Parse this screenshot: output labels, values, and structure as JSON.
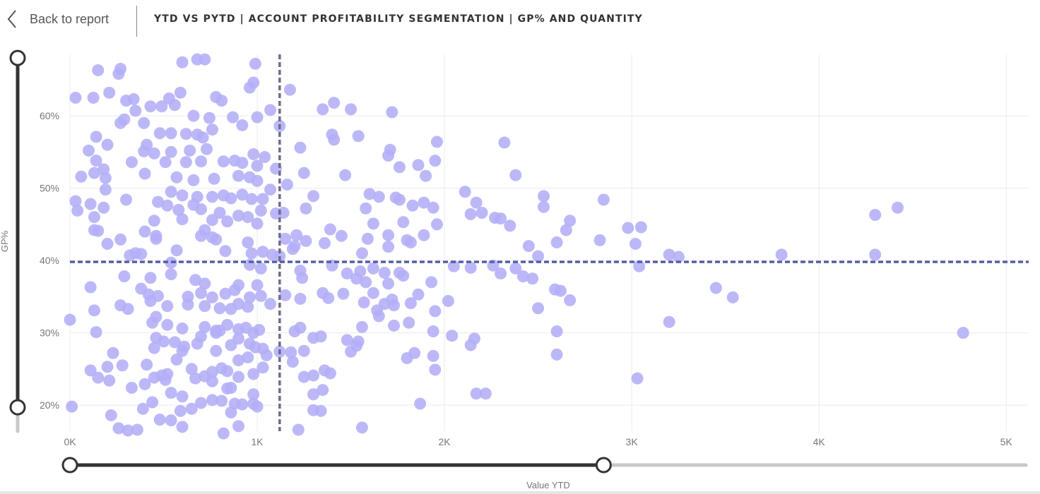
{
  "header": {
    "back_label": "Back to report",
    "title": "YTD VS PYTD | ACCOUNT PROFITABILITY SEGMENTATION | GP% AND QUANTITY"
  },
  "colors": {
    "point": "#b3aef7",
    "reference_line": "#5560a8",
    "vertical_reference": "#6f6b8a",
    "slider_active": "#333333",
    "slider_inactive": "#c8c8c8",
    "gridline": "#ebebeb"
  },
  "sliders": {
    "y_handle_top_value": 68,
    "y_handle_bottom_value": 19.7,
    "x_handle_left_value": 0,
    "x_handle_right_value": 2850
  },
  "chart_data": {
    "type": "scatter",
    "xlabel": "Value YTD",
    "ylabel": "GP%",
    "xlim": [
      0,
      5120
    ],
    "ylim": [
      16.4,
      68.5
    ],
    "x_ticks": [
      0,
      1000,
      2000,
      3000,
      4000,
      5000
    ],
    "x_tick_labels": [
      "0K",
      "1K",
      "2K",
      "3K",
      "4K",
      "5K"
    ],
    "y_ticks": [
      20,
      30,
      40,
      50,
      60
    ],
    "y_tick_labels": [
      "20%",
      "30%",
      "40%",
      "50%",
      "60%"
    ],
    "reference_lines": {
      "y": 39.8,
      "x": 1120
    },
    "points": [
      [
        30,
        62.5
      ],
      [
        150,
        66.3
      ],
      [
        270,
        66.5
      ],
      [
        260,
        65.8
      ],
      [
        600,
        67.4
      ],
      [
        680,
        67.8
      ],
      [
        720,
        67.8
      ],
      [
        990,
        67.2
      ],
      [
        125,
        62.5
      ],
      [
        210,
        63.2
      ],
      [
        300,
        62.1
      ],
      [
        340,
        62.3
      ],
      [
        430,
        61.3
      ],
      [
        490,
        61.3
      ],
      [
        530,
        62.4
      ],
      [
        590,
        63.2
      ],
      [
        780,
        62.6
      ],
      [
        810,
        62.1
      ],
      [
        960,
        63.9
      ],
      [
        980,
        64.6
      ],
      [
        1175,
        63.6
      ],
      [
        1410,
        61.8
      ],
      [
        560,
        61.5
      ],
      [
        660,
        60.0
      ],
      [
        1070,
        60.8
      ],
      [
        1000,
        59.8
      ],
      [
        270,
        59.0
      ],
      [
        290,
        59.5
      ],
      [
        395,
        59.0
      ],
      [
        745,
        59.7
      ],
      [
        870,
        59.8
      ],
      [
        920,
        58.7
      ],
      [
        1120,
        58.6
      ],
      [
        1350,
        60.9
      ],
      [
        1500,
        60.9
      ],
      [
        1720,
        60.5
      ],
      [
        350,
        60.7
      ],
      [
        140,
        57.1
      ],
      [
        480,
        57.6
      ],
      [
        540,
        57.6
      ],
      [
        620,
        57.5
      ],
      [
        680,
        57.4
      ],
      [
        710,
        57.0
      ],
      [
        760,
        58.1
      ],
      [
        1400,
        57.4
      ],
      [
        1410,
        56.7
      ],
      [
        1540,
        57.2
      ],
      [
        1710,
        55.3
      ],
      [
        1960,
        56.4
      ],
      [
        2320,
        56.3
      ],
      [
        200,
        56.0
      ],
      [
        410,
        56.0
      ],
      [
        100,
        55.2
      ],
      [
        395,
        55.1
      ],
      [
        450,
        54.8
      ],
      [
        540,
        55.0
      ],
      [
        640,
        55.2
      ],
      [
        730,
        55.4
      ],
      [
        980,
        54.7
      ],
      [
        1040,
        54.3
      ],
      [
        1230,
        55.6
      ],
      [
        1700,
        54.5
      ],
      [
        1860,
        53.2
      ],
      [
        1950,
        53.8
      ],
      [
        140,
        53.8
      ],
      [
        330,
        53.6
      ],
      [
        510,
        53.6
      ],
      [
        620,
        53.6
      ],
      [
        700,
        53.7
      ],
      [
        820,
        53.7
      ],
      [
        880,
        53.8
      ],
      [
        920,
        53.5
      ],
      [
        1000,
        53.1
      ],
      [
        1100,
        52.7
      ],
      [
        1760,
        52.9
      ],
      [
        2380,
        51.8
      ],
      [
        180,
        52.6
      ],
      [
        60,
        51.6
      ],
      [
        130,
        52.1
      ],
      [
        190,
        51.4
      ],
      [
        400,
        52.0
      ],
      [
        570,
        51.5
      ],
      [
        660,
        51.1
      ],
      [
        770,
        51.3
      ],
      [
        900,
        51.7
      ],
      [
        960,
        51.5
      ],
      [
        1000,
        51.0
      ],
      [
        1250,
        52.1
      ],
      [
        1470,
        51.8
      ],
      [
        1900,
        51.7
      ],
      [
        2110,
        49.5
      ],
      [
        2530,
        48.9
      ],
      [
        190,
        49.8
      ],
      [
        300,
        48.4
      ],
      [
        540,
        49.5
      ],
      [
        600,
        49.0
      ],
      [
        680,
        48.8
      ],
      [
        760,
        48.8
      ],
      [
        820,
        49.0
      ],
      [
        860,
        48.6
      ],
      [
        920,
        49.1
      ],
      [
        970,
        48.5
      ],
      [
        1030,
        48.5
      ],
      [
        1070,
        49.8
      ],
      [
        1160,
        50.5
      ],
      [
        1300,
        48.9
      ],
      [
        1600,
        49.2
      ],
      [
        1650,
        48.8
      ],
      [
        1740,
        48.7
      ],
      [
        1890,
        48.0
      ],
      [
        2170,
        48.0
      ],
      [
        2850,
        48.4
      ],
      [
        30,
        48.2
      ],
      [
        110,
        47.8
      ],
      [
        180,
        47.3
      ],
      [
        470,
        48.1
      ],
      [
        520,
        47.6
      ],
      [
        580,
        47.0
      ],
      [
        660,
        47.7
      ],
      [
        700,
        47.1
      ],
      [
        800,
        46.6
      ],
      [
        900,
        46.2
      ],
      [
        950,
        46.0
      ],
      [
        1020,
        46.9
      ],
      [
        1100,
        46.5
      ],
      [
        1260,
        47.2
      ],
      [
        1580,
        47.2
      ],
      [
        1760,
        48.4
      ],
      [
        1830,
        47.6
      ],
      [
        1940,
        47.3
      ],
      [
        2140,
        46.4
      ],
      [
        2200,
        46.6
      ],
      [
        2270,
        45.9
      ],
      [
        2300,
        45.8
      ],
      [
        2530,
        47.4
      ],
      [
        4300,
        46.3
      ],
      [
        4420,
        47.3
      ],
      [
        40,
        46.9
      ],
      [
        130,
        46.0
      ],
      [
        450,
        45.5
      ],
      [
        600,
        45.7
      ],
      [
        760,
        45.6
      ],
      [
        840,
        45.4
      ],
      [
        1000,
        45.1
      ],
      [
        1140,
        46.6
      ],
      [
        1620,
        45.1
      ],
      [
        1780,
        45.3
      ],
      [
        1960,
        45.0
      ],
      [
        2350,
        44.8
      ],
      [
        2670,
        45.5
      ],
      [
        3050,
        44.6
      ],
      [
        2980,
        44.5
      ],
      [
        130,
        44.2
      ],
      [
        150,
        44.1
      ],
      [
        400,
        44.0
      ],
      [
        460,
        43.4
      ],
      [
        720,
        44.2
      ],
      [
        760,
        43.2
      ],
      [
        1150,
        43.0
      ],
      [
        1210,
        43.5
      ],
      [
        1390,
        44.3
      ],
      [
        1700,
        43.5
      ],
      [
        1890,
        43.5
      ],
      [
        2650,
        44.2
      ],
      [
        2450,
        42.0
      ],
      [
        200,
        42.3
      ],
      [
        270,
        42.9
      ],
      [
        460,
        43.0
      ],
      [
        700,
        43.4
      ],
      [
        780,
        42.9
      ],
      [
        950,
        42.5
      ],
      [
        1200,
        42.0
      ],
      [
        1260,
        42.7
      ],
      [
        1360,
        42.4
      ],
      [
        1450,
        43.4
      ],
      [
        1590,
        43.0
      ],
      [
        1800,
        42.8
      ],
      [
        2600,
        42.5
      ],
      [
        2830,
        42.8
      ],
      [
        3020,
        42.3
      ],
      [
        320,
        40.7
      ],
      [
        350,
        41.0
      ],
      [
        380,
        40.9
      ],
      [
        570,
        41.4
      ],
      [
        830,
        41.3
      ],
      [
        970,
        41.0
      ],
      [
        1030,
        41.2
      ],
      [
        1080,
        40.8
      ],
      [
        1120,
        40.6
      ],
      [
        1190,
        41.6
      ],
      [
        1560,
        41.0
      ],
      [
        1700,
        41.9
      ],
      [
        1820,
        42.5
      ],
      [
        2500,
        40.6
      ],
      [
        3200,
        40.8
      ],
      [
        3250,
        40.5
      ],
      [
        3800,
        40.8
      ],
      [
        4300,
        40.8
      ],
      [
        540,
        39.7
      ],
      [
        960,
        39.4
      ],
      [
        1020,
        38.9
      ],
      [
        1230,
        38.6
      ],
      [
        1400,
        39.3
      ],
      [
        1480,
        38.2
      ],
      [
        1550,
        38.5
      ],
      [
        1620,
        38.9
      ],
      [
        1680,
        38.3
      ],
      [
        1760,
        38.3
      ],
      [
        2050,
        39.2
      ],
      [
        2140,
        39.0
      ],
      [
        2260,
        39.3
      ],
      [
        2300,
        38.2
      ],
      [
        2380,
        38.9
      ],
      [
        2420,
        37.8
      ],
      [
        2470,
        37.5
      ],
      [
        3040,
        39.2
      ],
      [
        290,
        37.8
      ],
      [
        430,
        37.6
      ],
      [
        540,
        38.1
      ],
      [
        670,
        37.3
      ],
      [
        720,
        36.8
      ],
      [
        900,
        36.6
      ],
      [
        1000,
        36.6
      ],
      [
        1240,
        37.6
      ],
      [
        1530,
        37.5
      ],
      [
        1580,
        37.0
      ],
      [
        1700,
        36.8
      ],
      [
        1780,
        37.9
      ],
      [
        1930,
        37.0
      ],
      [
        2590,
        36.0
      ],
      [
        2620,
        35.8
      ],
      [
        3450,
        36.2
      ],
      [
        3540,
        34.9
      ],
      [
        110,
        36.3
      ],
      [
        380,
        36.1
      ],
      [
        420,
        35.3
      ],
      [
        470,
        35.1
      ],
      [
        630,
        35.0
      ],
      [
        700,
        35.5
      ],
      [
        760,
        34.9
      ],
      [
        830,
        35.4
      ],
      [
        880,
        35.9
      ],
      [
        960,
        34.9
      ],
      [
        1020,
        35.1
      ],
      [
        1150,
        35.2
      ],
      [
        1230,
        34.7
      ],
      [
        1350,
        35.5
      ],
      [
        1460,
        35.4
      ],
      [
        1570,
        34.2
      ],
      [
        1620,
        35.5
      ],
      [
        1720,
        34.6
      ],
      [
        1820,
        34.1
      ],
      [
        1860,
        35.3
      ],
      [
        2020,
        34.4
      ],
      [
        2670,
        34.5
      ],
      [
        130,
        33.1
      ],
      [
        270,
        33.8
      ],
      [
        310,
        33.3
      ],
      [
        430,
        34.4
      ],
      [
        520,
        33.7
      ],
      [
        630,
        33.9
      ],
      [
        720,
        33.7
      ],
      [
        800,
        33.4
      ],
      [
        860,
        33.3
      ],
      [
        900,
        34.0
      ],
      [
        950,
        33.6
      ],
      [
        1070,
        34.0
      ],
      [
        1380,
        34.8
      ],
      [
        1640,
        33.1
      ],
      [
        1680,
        34.0
      ],
      [
        1730,
        33.8
      ],
      [
        1950,
        33.0
      ],
      [
        2500,
        33.4
      ],
      [
        0,
        31.8
      ],
      [
        140,
        30.1
      ],
      [
        440,
        31.4
      ],
      [
        460,
        32.2
      ],
      [
        520,
        31.1
      ],
      [
        600,
        30.6
      ],
      [
        720,
        30.8
      ],
      [
        780,
        30.3
      ],
      [
        800,
        30.3
      ],
      [
        840,
        31.1
      ],
      [
        900,
        30.5
      ],
      [
        940,
        30.7
      ],
      [
        980,
        30.0
      ],
      [
        1010,
        30.4
      ],
      [
        1200,
        30.2
      ],
      [
        1230,
        30.7
      ],
      [
        1300,
        29.3
      ],
      [
        1340,
        29.5
      ],
      [
        1480,
        29.0
      ],
      [
        1560,
        30.8
      ],
      [
        1650,
        32.3
      ],
      [
        1730,
        31.0
      ],
      [
        1810,
        31.4
      ],
      [
        1940,
        30.2
      ],
      [
        2040,
        29.6
      ],
      [
        2140,
        28.3
      ],
      [
        2160,
        29.2
      ],
      [
        2600,
        30.2
      ],
      [
        3200,
        31.5
      ],
      [
        4770,
        30.0
      ],
      [
        460,
        29.3
      ],
      [
        500,
        28.8
      ],
      [
        560,
        28.7
      ],
      [
        600,
        27.5
      ],
      [
        680,
        28.5
      ],
      [
        700,
        29.5
      ],
      [
        780,
        30.0
      ],
      [
        860,
        28.3
      ],
      [
        900,
        29.2
      ],
      [
        960,
        28.5
      ],
      [
        990,
        28.0
      ],
      [
        1030,
        27.8
      ],
      [
        1180,
        27.3
      ],
      [
        1250,
        27.5
      ],
      [
        1500,
        27.4
      ],
      [
        1530,
        28.2
      ],
      [
        1540,
        28.8
      ],
      [
        1800,
        26.5
      ],
      [
        1840,
        27.2
      ],
      [
        1940,
        26.8
      ],
      [
        2600,
        27.0
      ],
      [
        230,
        27.2
      ],
      [
        450,
        27.9
      ],
      [
        610,
        28.1
      ],
      [
        780,
        27.5
      ],
      [
        900,
        26.2
      ],
      [
        950,
        26.6
      ],
      [
        1050,
        26.9
      ],
      [
        1120,
        27.4
      ],
      [
        1190,
        26.0
      ],
      [
        1360,
        24.8
      ],
      [
        110,
        24.8
      ],
      [
        150,
        23.8
      ],
      [
        200,
        25.3
      ],
      [
        280,
        25.5
      ],
      [
        410,
        25.6
      ],
      [
        520,
        24.3
      ],
      [
        570,
        26.3
      ],
      [
        650,
        25.0
      ],
      [
        720,
        24.0
      ],
      [
        760,
        24.6
      ],
      [
        810,
        25.1
      ],
      [
        840,
        24.7
      ],
      [
        900,
        23.9
      ],
      [
        980,
        24.3
      ],
      [
        1030,
        25.2
      ],
      [
        1250,
        23.9
      ],
      [
        1300,
        24.1
      ],
      [
        1390,
        24.4
      ],
      [
        1950,
        24.9
      ],
      [
        3030,
        23.7
      ],
      [
        210,
        23.4
      ],
      [
        330,
        22.4
      ],
      [
        400,
        22.9
      ],
      [
        450,
        23.8
      ],
      [
        490,
        24.1
      ],
      [
        510,
        23.5
      ],
      [
        670,
        23.7
      ],
      [
        760,
        23.3
      ],
      [
        840,
        22.3
      ],
      [
        860,
        22.4
      ],
      [
        980,
        21.5
      ],
      [
        1300,
        21.5
      ],
      [
        1350,
        22.1
      ],
      [
        2170,
        21.6
      ],
      [
        2220,
        21.6
      ],
      [
        440,
        20.4
      ],
      [
        540,
        21.7
      ],
      [
        600,
        21.2
      ],
      [
        700,
        20.3
      ],
      [
        760,
        20.7
      ],
      [
        810,
        20.6
      ],
      [
        880,
        20.2
      ],
      [
        920,
        20.1
      ],
      [
        980,
        20.2
      ],
      [
        1000,
        19.8
      ],
      [
        1870,
        20.2
      ],
      [
        10,
        19.8
      ],
      [
        390,
        19.5
      ],
      [
        590,
        19.2
      ],
      [
        650,
        19.5
      ],
      [
        860,
        19.0
      ],
      [
        1300,
        19.3
      ],
      [
        1340,
        19.2
      ],
      [
        220,
        18.6
      ],
      [
        480,
        18.0
      ],
      [
        540,
        17.9
      ],
      [
        600,
        17.0
      ],
      [
        900,
        17.1
      ],
      [
        1560,
        16.9
      ],
      [
        260,
        16.8
      ],
      [
        310,
        16.5
      ],
      [
        360,
        16.6
      ],
      [
        1220,
        16.6
      ],
      [
        820,
        16.1
      ]
    ]
  }
}
